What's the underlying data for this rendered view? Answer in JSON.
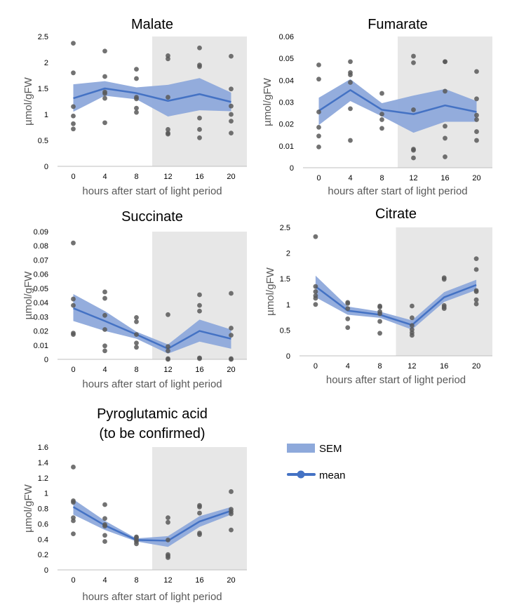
{
  "colors": {
    "band": "#8ea9db",
    "line": "#4472c4",
    "points": "#595959",
    "dark_shade": "#e7e7e7",
    "axis": "#bfbfbf",
    "text": "#000000",
    "tick_text": "#595959"
  },
  "legend": {
    "sem_label": "SEM",
    "mean_label": "mean"
  },
  "chart_data": [
    {
      "type": "line",
      "title": "Malate",
      "xlabel": "hours after start of light period",
      "ylabel": "µmol/gFW",
      "x": [
        0,
        4,
        8,
        12,
        16,
        20
      ],
      "x_tick_labels": [
        "0",
        "4",
        "8",
        "12",
        "16",
        "20"
      ],
      "ylim": [
        0,
        2.5
      ],
      "y_ticks": [
        0,
        0.5,
        1,
        1.5,
        2,
        2.5
      ],
      "y_tick_labels": [
        "0",
        "0.5",
        "1",
        "1.5",
        "2",
        "2.5"
      ],
      "dark_period_start": 10,
      "mean": [
        1.31,
        1.5,
        1.41,
        1.26,
        1.39,
        1.24
      ],
      "sem_upper": [
        1.58,
        1.64,
        1.52,
        1.57,
        1.7,
        1.42
      ],
      "sem_lower": [
        1.05,
        1.36,
        1.29,
        0.96,
        1.08,
        1.06
      ],
      "points": [
        [
          0,
          2.37
        ],
        [
          0,
          1.8
        ],
        [
          0,
          1.15
        ],
        [
          0,
          0.97
        ],
        [
          0,
          0.82
        ],
        [
          0,
          0.72
        ],
        [
          4,
          2.22
        ],
        [
          4,
          1.73
        ],
        [
          4,
          1.43
        ],
        [
          4,
          1.4
        ],
        [
          4,
          1.31
        ],
        [
          4,
          0.84
        ],
        [
          8,
          1.87
        ],
        [
          8,
          1.69
        ],
        [
          8,
          1.33
        ],
        [
          8,
          1.3
        ],
        [
          8,
          1.12
        ],
        [
          8,
          1.04
        ],
        [
          12,
          2.13
        ],
        [
          12,
          2.07
        ],
        [
          12,
          1.33
        ],
        [
          12,
          0.71
        ],
        [
          12,
          0.64
        ],
        [
          12,
          0.62
        ],
        [
          16,
          2.28
        ],
        [
          16,
          1.95
        ],
        [
          16,
          1.92
        ],
        [
          16,
          0.93
        ],
        [
          16,
          0.71
        ],
        [
          16,
          0.55
        ],
        [
          20,
          2.12
        ],
        [
          20,
          1.49
        ],
        [
          20,
          1.16
        ],
        [
          20,
          1.0
        ],
        [
          20,
          0.87
        ],
        [
          20,
          0.64
        ]
      ]
    },
    {
      "type": "line",
      "title": "Fumarate",
      "xlabel": "hours after start of light period",
      "ylabel": "µmol/gFW",
      "x": [
        0,
        4,
        8,
        12,
        16,
        20
      ],
      "x_tick_labels": [
        "0",
        "4",
        "8",
        "12",
        "16",
        "20"
      ],
      "ylim": [
        0,
        0.06
      ],
      "y_ticks": [
        0,
        0.01,
        0.02,
        0.03,
        0.04,
        0.05,
        0.06
      ],
      "y_tick_labels": [
        "0",
        "0.01",
        "0.02",
        "0.03",
        "0.04",
        "0.05",
        "0.06"
      ],
      "dark_period_start": 10,
      "mean": [
        0.026,
        0.0355,
        0.0265,
        0.0245,
        0.0285,
        0.0255
      ],
      "sem_upper": [
        0.032,
        0.0405,
        0.0295,
        0.033,
        0.036,
        0.0305
      ],
      "sem_lower": [
        0.0195,
        0.0305,
        0.0235,
        0.016,
        0.021,
        0.021
      ],
      "points": [
        [
          0,
          0.047
        ],
        [
          0,
          0.0405
        ],
        [
          0,
          0.0255
        ],
        [
          0,
          0.0185
        ],
        [
          0,
          0.0145
        ],
        [
          0,
          0.0095
        ],
        [
          4,
          0.0485
        ],
        [
          4,
          0.0435
        ],
        [
          4,
          0.0425
        ],
        [
          4,
          0.039
        ],
        [
          4,
          0.027
        ],
        [
          4,
          0.0125
        ],
        [
          8,
          0.034
        ],
        [
          8,
          0.0245
        ],
        [
          8,
          0.022
        ],
        [
          8,
          0.018
        ],
        [
          12,
          0.051
        ],
        [
          12,
          0.048
        ],
        [
          12,
          0.0265
        ],
        [
          12,
          0.0085
        ],
        [
          12,
          0.008
        ],
        [
          12,
          0.0045
        ],
        [
          16,
          0.0485
        ],
        [
          16,
          0.0485
        ],
        [
          16,
          0.035
        ],
        [
          16,
          0.019
        ],
        [
          16,
          0.0135
        ],
        [
          16,
          0.005
        ],
        [
          20,
          0.044
        ],
        [
          20,
          0.0315
        ],
        [
          20,
          0.024
        ],
        [
          20,
          0.022
        ],
        [
          20,
          0.0165
        ],
        [
          20,
          0.0125
        ]
      ]
    },
    {
      "type": "line",
      "title": "Succinate",
      "xlabel": "hours after start of light period",
      "ylabel": "µmol/gFW",
      "x": [
        0,
        4,
        8,
        12,
        16,
        20
      ],
      "x_tick_labels": [
        "0",
        "4",
        "8",
        "12",
        "16",
        "20"
      ],
      "ylim": [
        0,
        0.09
      ],
      "y_ticks": [
        0,
        0.01,
        0.02,
        0.03,
        0.04,
        0.05,
        0.06,
        0.07,
        0.08,
        0.09
      ],
      "y_tick_labels": [
        "0",
        "0.01",
        "0.02",
        "0.03",
        "0.04",
        "0.05",
        "0.06",
        "0.07",
        "0.08",
        "0.09"
      ],
      "dark_period_start": 10,
      "mean": [
        0.036,
        0.027,
        0.0175,
        0.0075,
        0.02,
        0.0145
      ],
      "sem_upper": [
        0.046,
        0.034,
        0.0195,
        0.0105,
        0.028,
        0.021
      ],
      "sem_lower": [
        0.027,
        0.02,
        0.0145,
        0.004,
        0.0125,
        0.0075
      ],
      "points": [
        [
          0,
          0.082
        ],
        [
          0,
          0.0425
        ],
        [
          0,
          0.038
        ],
        [
          0,
          0.0185
        ],
        [
          0,
          0.0175
        ],
        [
          4,
          0.0475
        ],
        [
          4,
          0.043
        ],
        [
          4,
          0.031
        ],
        [
          4,
          0.021
        ],
        [
          4,
          0.0095
        ],
        [
          4,
          0.006
        ],
        [
          8,
          0.0295
        ],
        [
          8,
          0.0265
        ],
        [
          8,
          0.0175
        ],
        [
          8,
          0.0115
        ],
        [
          8,
          0.0085
        ],
        [
          12,
          0.0315
        ],
        [
          12,
          0.009
        ],
        [
          12,
          0.006
        ],
        [
          12,
          0.0005
        ],
        [
          12,
          0.0
        ],
        [
          16,
          0.0455
        ],
        [
          16,
          0.038
        ],
        [
          16,
          0.034
        ],
        [
          16,
          0.001
        ],
        [
          16,
          0.0005
        ],
        [
          20,
          0.0465
        ],
        [
          20,
          0.022
        ],
        [
          20,
          0.017
        ],
        [
          20,
          0.0005
        ],
        [
          20,
          0.0
        ]
      ]
    },
    {
      "type": "line",
      "title": "Citrate",
      "xlabel": "hours after start of light period",
      "ylabel": "µmol/gFW",
      "x": [
        0,
        4,
        8,
        12,
        16,
        20
      ],
      "x_tick_labels": [
        "0",
        "4",
        "8",
        "12",
        "16",
        "20"
      ],
      "ylim": [
        0,
        2.5
      ],
      "y_ticks": [
        0,
        0.5,
        1,
        1.5,
        2,
        2.5
      ],
      "y_tick_labels": [
        "0",
        "0.5",
        "1",
        "1.5",
        "2",
        "2.5"
      ],
      "dark_period_start": 10,
      "mean": [
        1.35,
        0.88,
        0.8,
        0.6,
        1.14,
        1.38
      ],
      "sem_upper": [
        1.56,
        0.96,
        0.86,
        0.69,
        1.24,
        1.48
      ],
      "sem_lower": [
        1.14,
        0.8,
        0.74,
        0.51,
        1.05,
        1.28
      ],
      "points": [
        [
          0,
          2.32
        ],
        [
          0,
          1.35
        ],
        [
          0,
          1.25
        ],
        [
          0,
          1.17
        ],
        [
          0,
          1.12
        ],
        [
          0,
          1.0
        ],
        [
          4,
          1.04
        ],
        [
          4,
          1.02
        ],
        [
          4,
          0.92
        ],
        [
          4,
          0.72
        ],
        [
          4,
          0.55
        ],
        [
          8,
          0.97
        ],
        [
          8,
          0.95
        ],
        [
          8,
          0.86
        ],
        [
          8,
          0.82
        ],
        [
          8,
          0.67
        ],
        [
          8,
          0.44
        ],
        [
          12,
          0.97
        ],
        [
          12,
          0.74
        ],
        [
          12,
          0.59
        ],
        [
          12,
          0.51
        ],
        [
          12,
          0.45
        ],
        [
          12,
          0.4
        ],
        [
          16,
          1.52
        ],
        [
          16,
          1.49
        ],
        [
          16,
          0.98
        ],
        [
          16,
          0.95
        ],
        [
          16,
          0.92
        ],
        [
          20,
          1.89
        ],
        [
          20,
          1.68
        ],
        [
          20,
          1.27
        ],
        [
          20,
          1.25
        ],
        [
          20,
          1.09
        ],
        [
          20,
          1.01
        ]
      ]
    },
    {
      "type": "line",
      "title": "Pyroglutamic acid",
      "subtitle": "(to be confirmed)",
      "xlabel": "hours after start of light period",
      "ylabel": "µmol/gFW",
      "x": [
        0,
        4,
        8,
        12,
        16,
        20
      ],
      "x_tick_labels": [
        "0",
        "4",
        "8",
        "12",
        "16",
        "20"
      ],
      "ylim": [
        0,
        1.6
      ],
      "y_ticks": [
        0,
        0.2,
        0.4,
        0.6,
        0.8,
        1,
        1.2,
        1.4,
        1.6
      ],
      "y_tick_labels": [
        "0",
        "0.2",
        "0.4",
        "0.6",
        "0.8",
        "1",
        "1.2",
        "1.4",
        "1.6"
      ],
      "dark_period_start": 10,
      "mean": [
        0.82,
        0.58,
        0.39,
        0.38,
        0.63,
        0.77
      ],
      "sem_upper": [
        0.92,
        0.64,
        0.41,
        0.44,
        0.7,
        0.82
      ],
      "sem_lower": [
        0.72,
        0.52,
        0.37,
        0.3,
        0.56,
        0.72
      ],
      "points": [
        [
          0,
          1.34
        ],
        [
          0,
          0.9
        ],
        [
          0,
          0.88
        ],
        [
          0,
          0.68
        ],
        [
          0,
          0.64
        ],
        [
          0,
          0.47
        ],
        [
          4,
          0.85
        ],
        [
          4,
          0.67
        ],
        [
          4,
          0.59
        ],
        [
          4,
          0.57
        ],
        [
          4,
          0.45
        ],
        [
          4,
          0.37
        ],
        [
          8,
          0.43
        ],
        [
          8,
          0.42
        ],
        [
          8,
          0.39
        ],
        [
          8,
          0.37
        ],
        [
          8,
          0.34
        ],
        [
          12,
          0.68
        ],
        [
          12,
          0.62
        ],
        [
          12,
          0.39
        ],
        [
          12,
          0.2
        ],
        [
          12,
          0.18
        ],
        [
          12,
          0.16
        ],
        [
          16,
          0.84
        ],
        [
          16,
          0.82
        ],
        [
          16,
          0.74
        ],
        [
          16,
          0.48
        ],
        [
          16,
          0.46
        ],
        [
          20,
          1.02
        ],
        [
          20,
          0.79
        ],
        [
          20,
          0.76
        ],
        [
          20,
          0.73
        ],
        [
          20,
          0.52
        ]
      ]
    }
  ]
}
